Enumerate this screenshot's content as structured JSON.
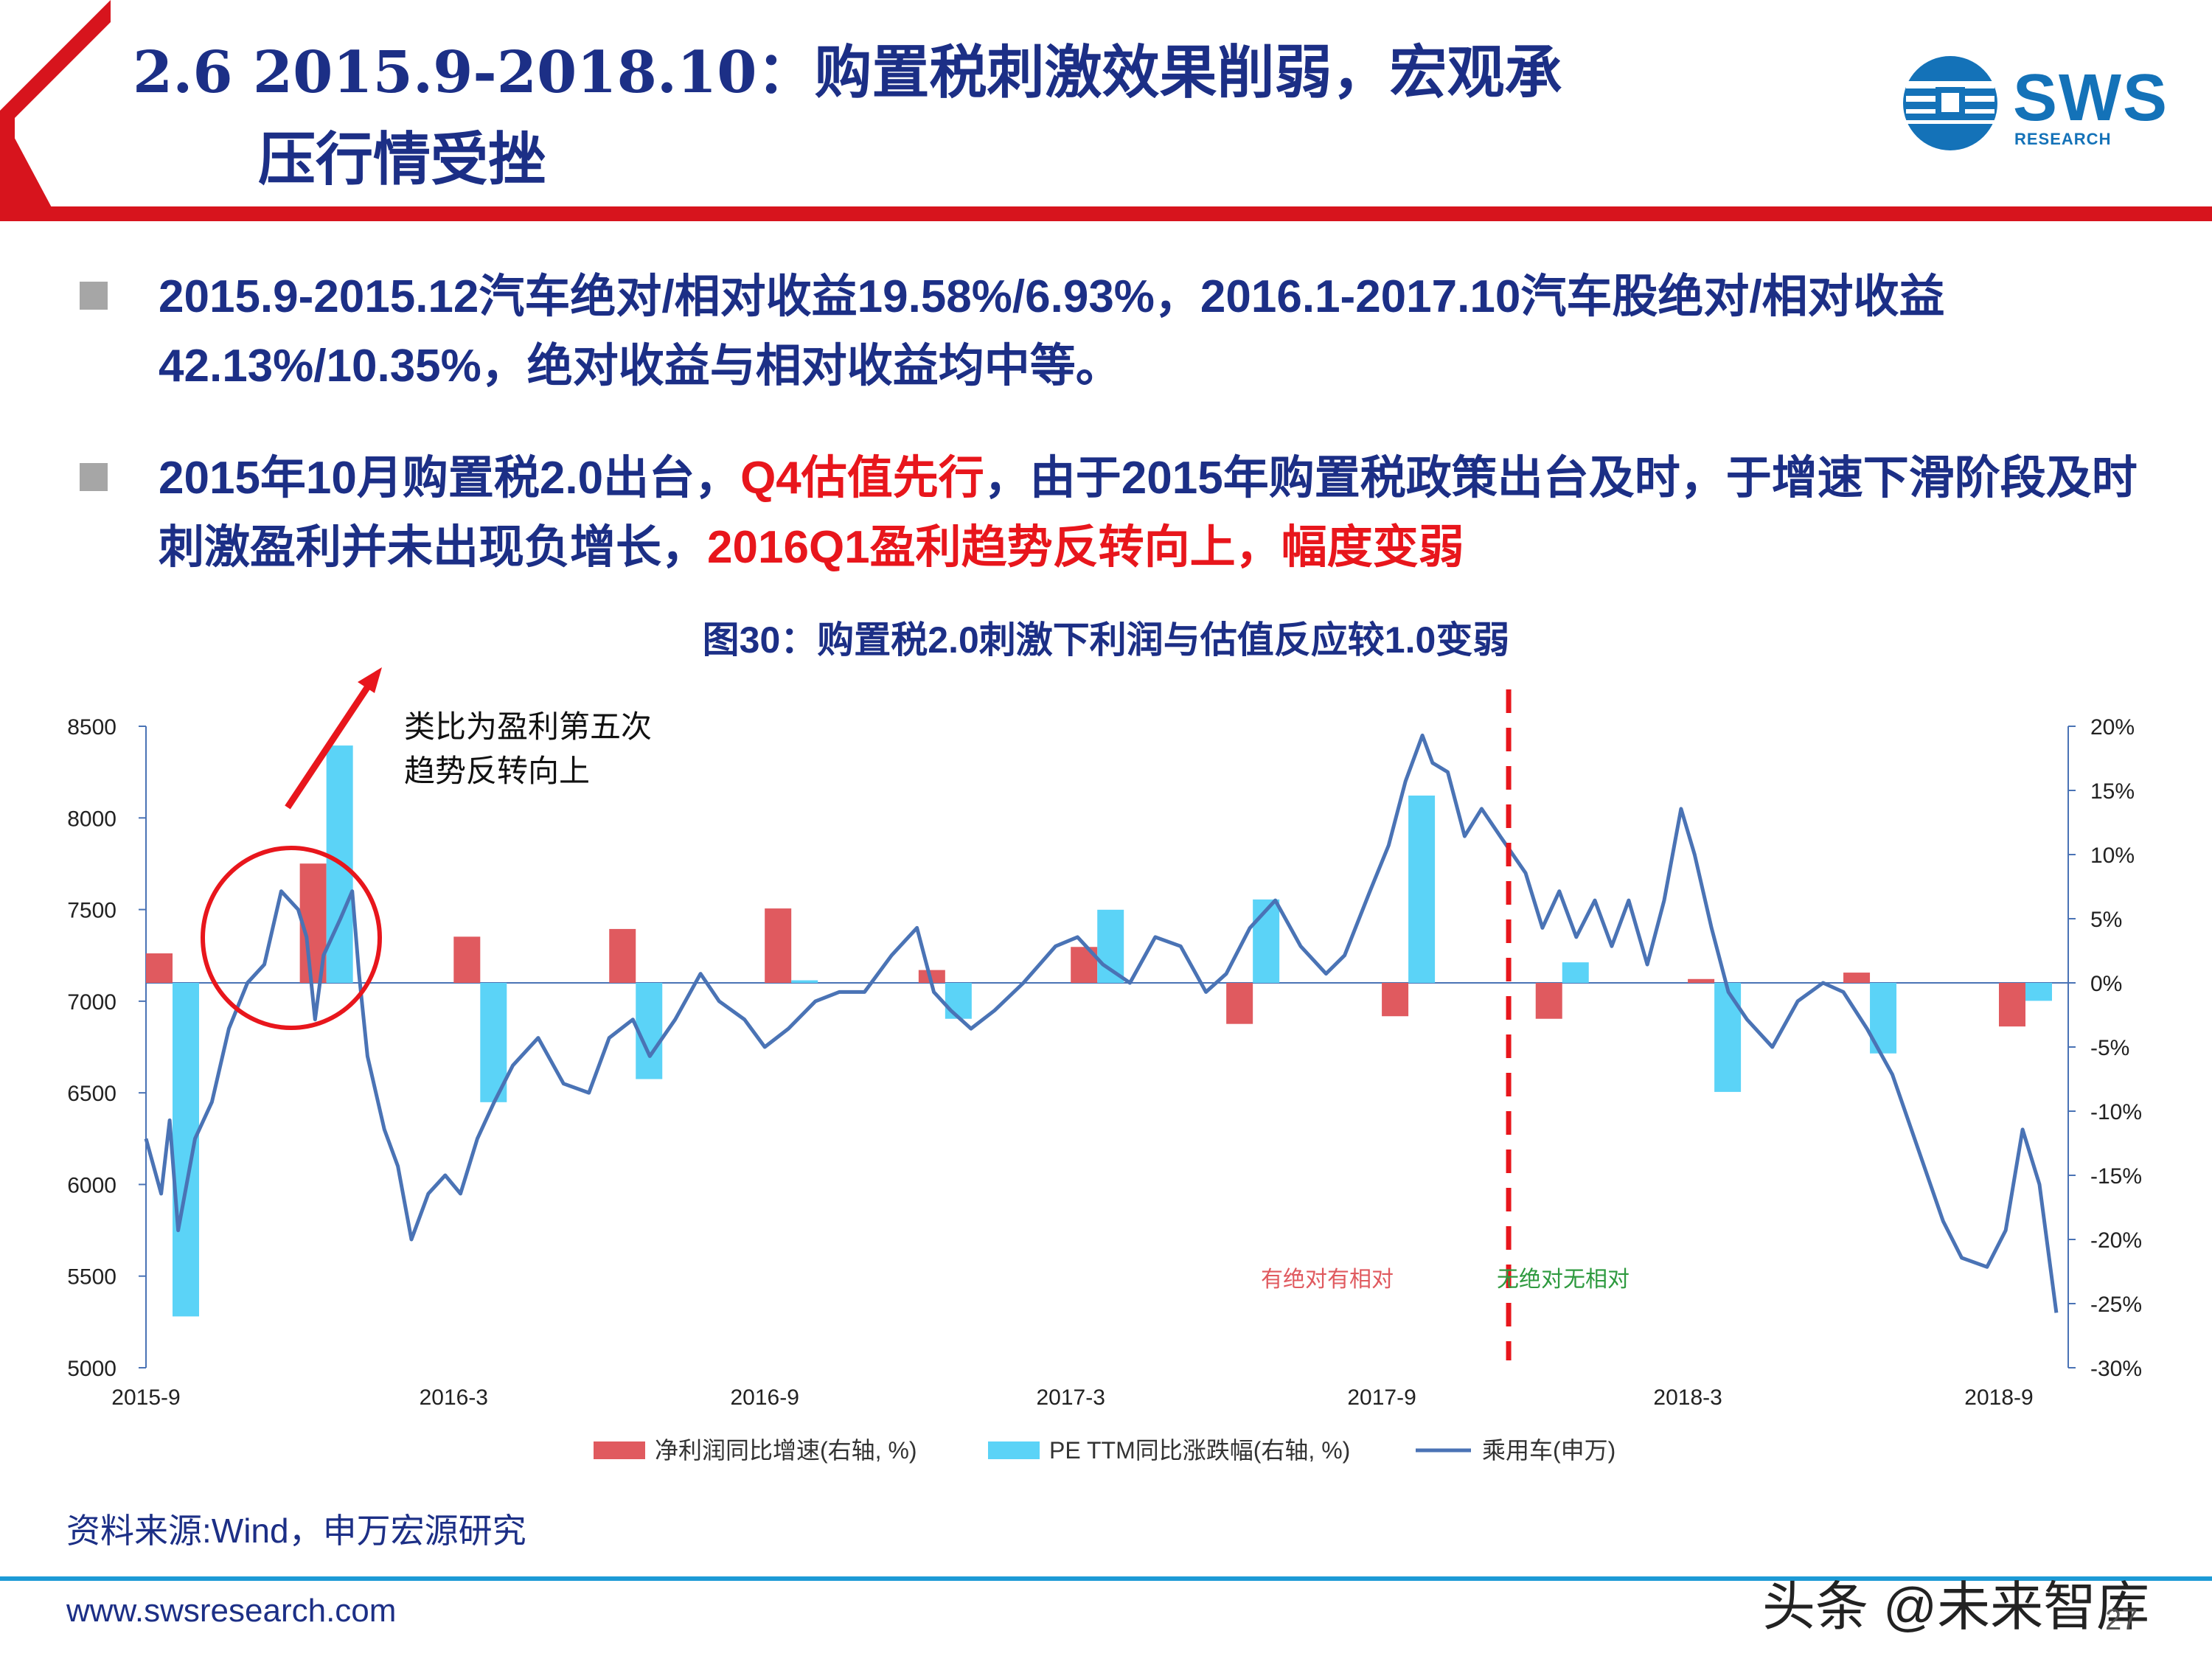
{
  "header": {
    "title_line1": "2.6 2015.9-2018.10：购置税刺激效果削弱，宏观承",
    "title_line2": "压行情受挫",
    "logo_text": "SWS",
    "logo_sub": "RESEARCH",
    "colors": {
      "red": "#d7141d",
      "navy": "#1c2f86",
      "logo_blue": "#1472b8"
    }
  },
  "bullets": [
    {
      "segments": [
        {
          "text": "2015.9-2015.12汽车绝对/相对收益19.58%/6.93%，2016.1-2017.10汽车股绝对/相对收益42.13%/10.35%，绝对收益与相对收益均中等。",
          "highlight": false
        }
      ]
    },
    {
      "segments": [
        {
          "text": "2015年10月购置税2.0出台，",
          "highlight": false
        },
        {
          "text": "Q4估值先行",
          "highlight": true
        },
        {
          "text": "，由于2015年购置税政策出台及时，于增速下滑阶段及时刺激盈利并未出现负增长，",
          "highlight": false
        },
        {
          "text": "2016Q1盈利趋势反转向上，幅度变弱",
          "highlight": true
        }
      ]
    }
  ],
  "chart_title": "图30：购置税2.0刺激下利润与估值反应较1.0变弱",
  "chart_data": {
    "type": "bar+line",
    "x_range": [
      "2015-09",
      "2018-10"
    ],
    "x_ticks": [
      "2015-9",
      "2016-3",
      "2016-9",
      "2017-3",
      "2017-9",
      "2018-3",
      "2018-9"
    ],
    "y_left": {
      "min": 5000,
      "max": 8500,
      "ticks": [
        5000,
        5500,
        6000,
        6500,
        7000,
        7500,
        8000,
        8500
      ]
    },
    "y_right": {
      "min": -30,
      "max": 20,
      "ticks": [
        "-30%",
        "-25%",
        "-20%",
        "-15%",
        "-10%",
        "-5%",
        "0%",
        "5%",
        "10%",
        "15%",
        "20%"
      ]
    },
    "series": [
      {
        "name": "净利润同比增速(右轴, %)",
        "type": "bar",
        "axis": "right",
        "color": "#e05a5f",
        "points": [
          {
            "x": "2015-09",
            "v": 2.3
          },
          {
            "x": "2015-12",
            "v": 9.3
          },
          {
            "x": "2016-03",
            "v": 3.6
          },
          {
            "x": "2016-06",
            "v": 4.2
          },
          {
            "x": "2016-09",
            "v": 5.8
          },
          {
            "x": "2016-12",
            "v": 1.0
          },
          {
            "x": "2017-03",
            "v": 2.8
          },
          {
            "x": "2017-06",
            "v": -3.2
          },
          {
            "x": "2017-09",
            "v": -2.6
          },
          {
            "x": "2017-12",
            "v": -2.8
          },
          {
            "x": "2018-03",
            "v": 0.3
          },
          {
            "x": "2018-06",
            "v": 0.8
          },
          {
            "x": "2018-09",
            "v": -3.4
          }
        ]
      },
      {
        "name": "PE TTM同比涨跌幅(右轴, %)",
        "type": "bar",
        "axis": "right",
        "color": "#5bd3f7",
        "points": [
          {
            "x": "2015-09",
            "v": -26
          },
          {
            "x": "2015-12",
            "v": 18.5
          },
          {
            "x": "2016-03",
            "v": -9.3
          },
          {
            "x": "2016-06",
            "v": -7.5
          },
          {
            "x": "2016-09",
            "v": 0.2
          },
          {
            "x": "2016-12",
            "v": -2.8
          },
          {
            "x": "2017-03",
            "v": 5.7
          },
          {
            "x": "2017-06",
            "v": 6.5
          },
          {
            "x": "2017-09",
            "v": 14.6
          },
          {
            "x": "2017-12",
            "v": 1.6
          },
          {
            "x": "2018-03",
            "v": -8.5
          },
          {
            "x": "2018-06",
            "v": -5.5
          },
          {
            "x": "2018-09",
            "v": -1.4
          }
        ]
      },
      {
        "name": "乘用车(申万)",
        "type": "line",
        "axis": "left",
        "color": "#4a73b5",
        "points": [
          [
            "2015-09-01",
            6250
          ],
          [
            "2015-09-10",
            5950
          ],
          [
            "2015-09-15",
            6350
          ],
          [
            "2015-09-20",
            5750
          ],
          [
            "2015-09-30",
            6250
          ],
          [
            "2015-10-10",
            6450
          ],
          [
            "2015-10-20",
            6850
          ],
          [
            "2015-10-31",
            7100
          ],
          [
            "2015-11-10",
            7200
          ],
          [
            "2015-11-20",
            7600
          ],
          [
            "2015-11-30",
            7500
          ],
          [
            "2015-12-05",
            7350
          ],
          [
            "2015-12-10",
            6900
          ],
          [
            "2015-12-15",
            7250
          ],
          [
            "2015-12-25",
            7450
          ],
          [
            "2016-01-01",
            7600
          ],
          [
            "2016-01-05",
            7150
          ],
          [
            "2016-01-10",
            6700
          ],
          [
            "2016-01-20",
            6300
          ],
          [
            "2016-01-28",
            6100
          ],
          [
            "2016-02-05",
            5700
          ],
          [
            "2016-02-15",
            5950
          ],
          [
            "2016-02-25",
            6050
          ],
          [
            "2016-03-05",
            5950
          ],
          [
            "2016-03-15",
            6250
          ],
          [
            "2016-03-25",
            6450
          ],
          [
            "2016-04-05",
            6650
          ],
          [
            "2016-04-20",
            6800
          ],
          [
            "2016-05-05",
            6550
          ],
          [
            "2016-05-20",
            6500
          ],
          [
            "2016-06-01",
            6800
          ],
          [
            "2016-06-15",
            6900
          ],
          [
            "2016-06-25",
            6700
          ],
          [
            "2016-07-10",
            6900
          ],
          [
            "2016-07-25",
            7150
          ],
          [
            "2016-08-05",
            7000
          ],
          [
            "2016-08-20",
            6900
          ],
          [
            "2016-09-01",
            6750
          ],
          [
            "2016-09-15",
            6850
          ],
          [
            "2016-10-01",
            7000
          ],
          [
            "2016-10-15",
            7050
          ],
          [
            "2016-10-30",
            7050
          ],
          [
            "2016-11-15",
            7250
          ],
          [
            "2016-11-30",
            7400
          ],
          [
            "2016-12-10",
            7050
          ],
          [
            "2016-12-20",
            6950
          ],
          [
            "2017-01-01",
            6850
          ],
          [
            "2017-01-15",
            6950
          ],
          [
            "2017-02-01",
            7100
          ],
          [
            "2017-02-20",
            7300
          ],
          [
            "2017-03-05",
            7350
          ],
          [
            "2017-03-20",
            7200
          ],
          [
            "2017-04-05",
            7100
          ],
          [
            "2017-04-20",
            7350
          ],
          [
            "2017-05-05",
            7300
          ],
          [
            "2017-05-20",
            7050
          ],
          [
            "2017-06-01",
            7150
          ],
          [
            "2017-06-15",
            7400
          ],
          [
            "2017-06-30",
            7550
          ],
          [
            "2017-07-15",
            7300
          ],
          [
            "2017-07-30",
            7150
          ],
          [
            "2017-08-10",
            7250
          ],
          [
            "2017-08-25",
            7600
          ],
          [
            "2017-09-05",
            7850
          ],
          [
            "2017-09-15",
            8200
          ],
          [
            "2017-09-25",
            8450
          ],
          [
            "2017-10-01",
            8300
          ],
          [
            "2017-10-10",
            8250
          ],
          [
            "2017-10-20",
            7900
          ],
          [
            "2017-10-30",
            8050
          ],
          [
            "2017-11-10",
            7900
          ],
          [
            "2017-11-25",
            7700
          ],
          [
            "2017-12-05",
            7400
          ],
          [
            "2017-12-15",
            7600
          ],
          [
            "2017-12-25",
            7350
          ],
          [
            "2018-01-05",
            7550
          ],
          [
            "2018-01-15",
            7300
          ],
          [
            "2018-01-25",
            7550
          ],
          [
            "2018-02-05",
            7200
          ],
          [
            "2018-02-15",
            7550
          ],
          [
            "2018-02-25",
            8050
          ],
          [
            "2018-03-05",
            7800
          ],
          [
            "2018-03-15",
            7400
          ],
          [
            "2018-03-25",
            7050
          ],
          [
            "2018-04-05",
            6900
          ],
          [
            "2018-04-20",
            6750
          ],
          [
            "2018-05-05",
            7000
          ],
          [
            "2018-05-20",
            7100
          ],
          [
            "2018-06-01",
            7050
          ],
          [
            "2018-06-15",
            6850
          ],
          [
            "2018-06-30",
            6600
          ],
          [
            "2018-07-15",
            6200
          ],
          [
            "2018-07-30",
            5800
          ],
          [
            "2018-08-10",
            5600
          ],
          [
            "2018-08-25",
            5550
          ],
          [
            "2018-09-05",
            5750
          ],
          [
            "2018-09-15",
            6300
          ],
          [
            "2018-09-25",
            6000
          ],
          [
            "2018-10-05",
            5300
          ]
        ]
      }
    ],
    "vline_x": "2017-11-15",
    "annotations": {
      "arrow_label_1": "类比为盈利第五次",
      "arrow_label_2": "趋势反转向上",
      "left_zone_label": "有绝对有相对",
      "right_zone_label": "无绝对无相对"
    },
    "legend_position": "bottom",
    "grid": false
  },
  "source": "资料来源:Wind，申万宏源研究",
  "footer": {
    "url": "www.swsresearch.com",
    "watermark": "头条 @未来智库",
    "page_number": "27"
  }
}
